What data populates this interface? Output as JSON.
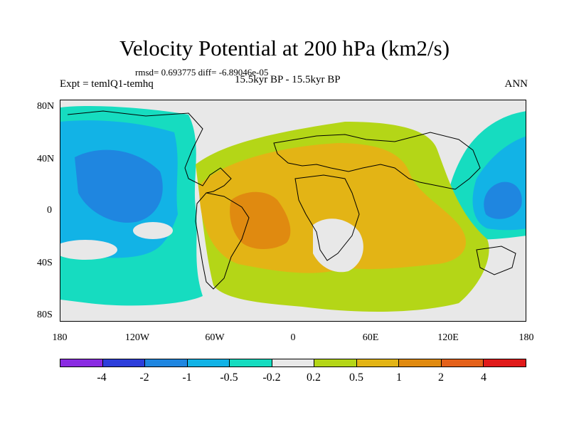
{
  "title": "Velocity Potential at 200 hPa (km2/s)",
  "stats": "rmsd= 0.693775 diff= -6.89046e-05",
  "expt": "Expt = temlQ1-temhq",
  "period": "15.5kyr BP - 15.5kyr BP",
  "season": "ANN",
  "lat_labels": [
    "80N",
    "40N",
    "0",
    "40S",
    "80S"
  ],
  "lon_labels": [
    "180",
    "120W",
    "60W",
    "0",
    "60E",
    "120E",
    "180"
  ],
  "colorbar": {
    "colors": [
      "#8a2be2",
      "#2d3edb",
      "#1f86e0",
      "#12b3e6",
      "#16dcc0",
      "#e8e8e8",
      "#b4d617",
      "#e3b415",
      "#e08a10",
      "#e4611a",
      "#e01a1a"
    ],
    "labels": [
      "-4",
      "-2",
      "-1",
      "-0.5",
      "-0.2",
      "0.2",
      "0.5",
      "1",
      "2",
      "4"
    ]
  }
}
